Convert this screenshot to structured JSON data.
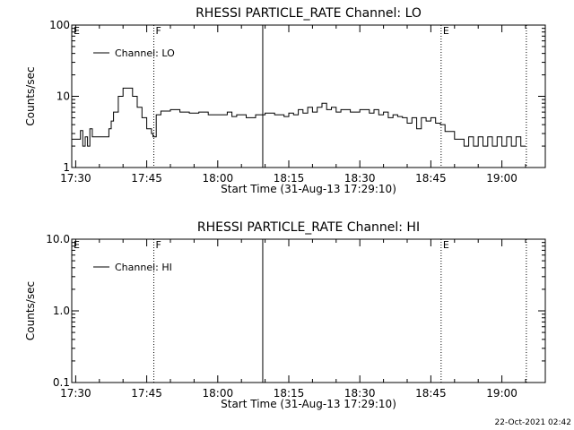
{
  "chart_data": [
    {
      "type": "line",
      "title": "RHESSI PARTICLE_RATE Channel: LO",
      "xlabel": "Start Time (31-Aug-13 17:29:10)",
      "ylabel": "Counts/sec",
      "yscale": "log",
      "ylim": [
        1,
        100
      ],
      "yticks": [
        1,
        10,
        100
      ],
      "ytick_labels": [
        "1",
        "10",
        "100"
      ],
      "xlim": [
        "17:29:10",
        "19:09:10"
      ],
      "xticks": [
        "17:30",
        "17:45",
        "18:00",
        "18:15",
        "18:30",
        "18:45",
        "19:00"
      ],
      "legend": "top-left",
      "series": [
        {
          "name": "Channel: LO",
          "x": [
            "17:29:10",
            "17:31:00",
            "17:31:30",
            "17:32:00",
            "17:32:30",
            "17:33:00",
            "17:33:30",
            "17:34:00",
            "17:35:00",
            "17:36:00",
            "17:37:00",
            "17:37:30",
            "17:38:00",
            "17:39:00",
            "17:40:00",
            "17:41:00",
            "17:42:00",
            "17:43:00",
            "17:44:00",
            "17:45:00",
            "17:46:00",
            "17:46:20",
            "17:47:00",
            "17:48:00",
            "17:50:00",
            "17:52:00",
            "17:54:00",
            "17:56:00",
            "17:58:00",
            "18:00:00",
            "18:01:00",
            "18:02:00",
            "18:03:00",
            "18:04:00",
            "18:05:00",
            "18:06:00",
            "18:08:00",
            "18:10:00",
            "18:12:00",
            "18:14:00",
            "18:15:00",
            "18:16:00",
            "18:17:00",
            "18:18:00",
            "18:19:00",
            "18:20:00",
            "18:21:00",
            "18:22:00",
            "18:23:00",
            "18:24:00",
            "18:25:00",
            "18:26:00",
            "18:28:00",
            "18:30:00",
            "18:32:00",
            "18:33:00",
            "18:34:00",
            "18:35:00",
            "18:36:00",
            "18:37:00",
            "18:38:00",
            "18:39:00",
            "18:40:00",
            "18:41:00",
            "18:42:00",
            "18:43:00",
            "18:44:00",
            "18:45:00",
            "18:46:00",
            "18:47:00",
            "18:48:00",
            "18:50:00",
            "18:51:00",
            "18:52:00",
            "18:53:00",
            "18:54:00",
            "18:55:00",
            "18:56:00",
            "18:57:00",
            "18:58:00",
            "18:59:00",
            "19:00:00",
            "19:01:00",
            "19:02:00",
            "19:03:00",
            "19:04:00",
            "19:05:00"
          ],
          "y": [
            2.5,
            3.3,
            2.0,
            2.7,
            2.0,
            3.5,
            2.7,
            2.7,
            2.7,
            2.7,
            3.5,
            4.5,
            6.0,
            10,
            13,
            13,
            10,
            7,
            5,
            3.5,
            3.0,
            2.7,
            5.5,
            6.2,
            6.5,
            6.0,
            5.8,
            6.0,
            5.5,
            5.5,
            5.5,
            6.0,
            5.2,
            5.5,
            5.5,
            5.0,
            5.5,
            5.8,
            5.5,
            5.2,
            5.8,
            5.5,
            6.5,
            5.8,
            7.0,
            6.0,
            7.0,
            8.0,
            6.5,
            7.0,
            6.0,
            6.5,
            6.0,
            6.5,
            5.8,
            6.5,
            5.5,
            6.0,
            5.0,
            5.5,
            5.2,
            5.0,
            4.2,
            5.0,
            3.5,
            5.0,
            4.5,
            5.0,
            4.2,
            4.0,
            3.2,
            2.5,
            2.5,
            2.0,
            2.7,
            2.0,
            2.7,
            2.0,
            2.7,
            2.0,
            2.7,
            2.0,
            2.7,
            2.0,
            2.7,
            2.0,
            2.0
          ]
        }
      ],
      "markers": [
        {
          "label": "E",
          "time": "17:29:10",
          "style": "dotted"
        },
        {
          "label": "F",
          "time": "17:46:30",
          "style": "dotted"
        },
        {
          "label": "",
          "time": "18:09:30",
          "style": "solid"
        },
        {
          "label": "E",
          "time": "18:47:10",
          "style": "dotted"
        },
        {
          "label": "",
          "time": "19:05:10",
          "style": "dotted"
        }
      ]
    },
    {
      "type": "line",
      "title": "RHESSI PARTICLE_RATE Channel: HI",
      "xlabel": "Start Time (31-Aug-13 17:29:10)",
      "ylabel": "Counts/sec",
      "yscale": "log",
      "ylim": [
        0.1,
        10
      ],
      "yticks": [
        0.1,
        1,
        10
      ],
      "ytick_labels": [
        "0.1",
        "1.0",
        "10.0"
      ],
      "xlim": [
        "17:29:10",
        "19:09:10"
      ],
      "xticks": [
        "17:30",
        "17:45",
        "18:00",
        "18:15",
        "18:30",
        "18:45",
        "19:00"
      ],
      "legend": "top-left",
      "series": [
        {
          "name": "Channel: HI",
          "x": [],
          "y": []
        }
      ],
      "markers": [
        {
          "label": "E",
          "time": "17:29:10",
          "style": "dotted"
        },
        {
          "label": "F",
          "time": "17:46:30",
          "style": "dotted"
        },
        {
          "label": "",
          "time": "18:09:30",
          "style": "solid"
        },
        {
          "label": "E",
          "time": "18:47:10",
          "style": "dotted"
        },
        {
          "label": "",
          "time": "19:05:10",
          "style": "dotted"
        }
      ]
    }
  ],
  "footer": {
    "timestamp": "22-Oct-2021 02:42"
  }
}
